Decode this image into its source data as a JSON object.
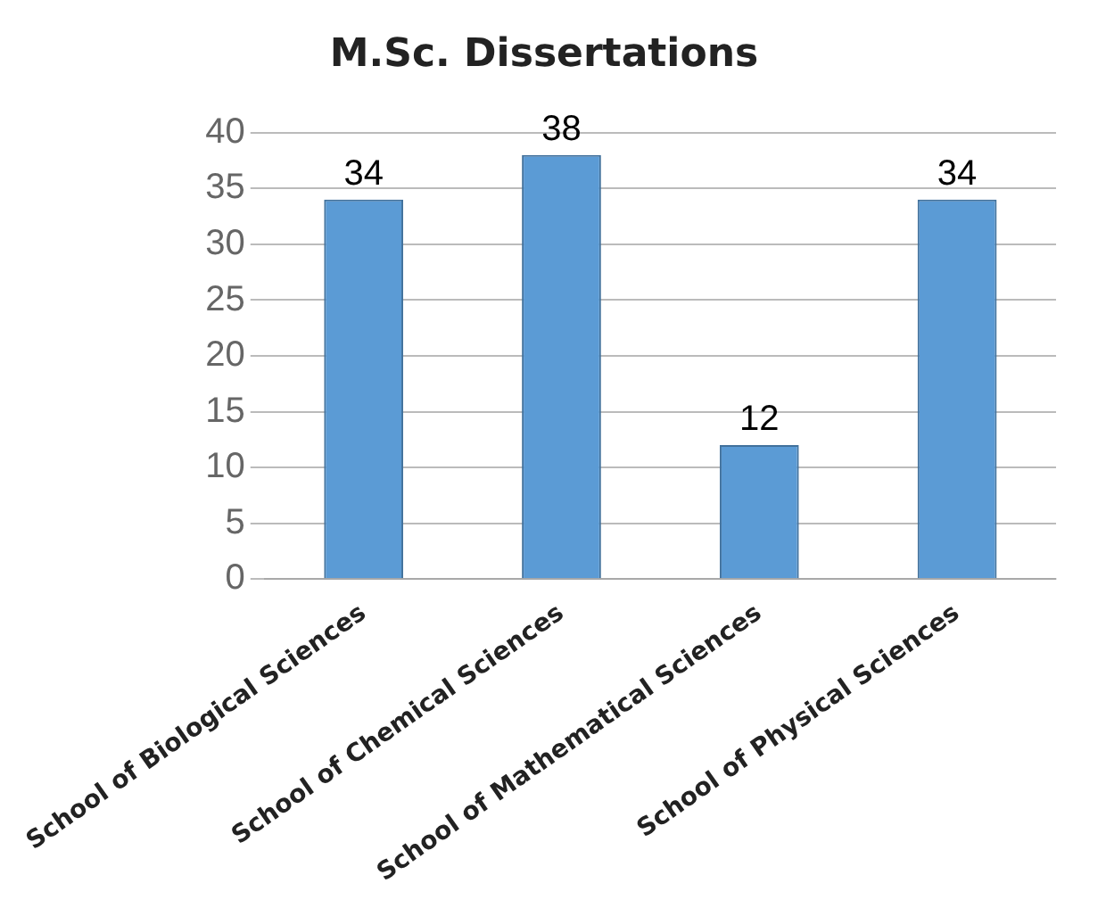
{
  "chart_data": {
    "type": "bar",
    "title": "M.Sc. Dissertations",
    "categories": [
      "School of Biological Sciences",
      "School of Chemical Sciences",
      "School of Mathematical Sciences",
      "School of Physical Sciences"
    ],
    "values": [
      34,
      38,
      12,
      34
    ],
    "color": "#5b9bd5",
    "ylim": [
      0,
      40
    ],
    "yticks": [
      0,
      5,
      10,
      15,
      20,
      25,
      30,
      35,
      40
    ],
    "grid": "y",
    "data_labels": true,
    "legend": false
  }
}
